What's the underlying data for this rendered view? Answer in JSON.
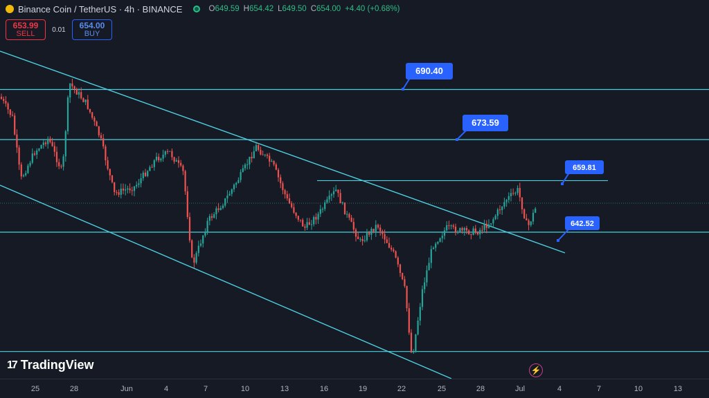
{
  "header": {
    "symbol_title": "Binance Coin / TetherUS · 4h · BINANCE",
    "ohlc": [
      {
        "key": "O",
        "value": "649.59"
      },
      {
        "key": "H",
        "value": "654.42"
      },
      {
        "key": "L",
        "value": "649.50"
      },
      {
        "key": "C",
        "value": "654.00"
      },
      {
        "key": "",
        "value": "+4.40 (+0.68%)"
      }
    ]
  },
  "trade": {
    "sell_price": "653.99",
    "sell_label": "SELL",
    "spread": "0.01",
    "buy_price": "654.00",
    "buy_label": "BUY"
  },
  "annotations": [
    {
      "label": "690.40",
      "price": 690.4
    },
    {
      "label": "673.59",
      "price": 673.59
    },
    {
      "label": "659.81",
      "price": 659.81
    },
    {
      "label": "642.52",
      "price": 642.52
    }
  ],
  "x_axis_labels": [
    "25",
    "28",
    "Jun",
    "4",
    "7",
    "10",
    "13",
    "16",
    "19",
    "22",
    "25",
    "28",
    "Jul",
    "4",
    "7",
    "10",
    "13"
  ],
  "branding": {
    "logo_text": "TradingView",
    "logo_mark": "17"
  },
  "colors": {
    "background": "#161a25",
    "up": "#26a69a",
    "down": "#ef5350",
    "lines": "#4dd0e1",
    "label_bg": "#2962ff"
  }
}
